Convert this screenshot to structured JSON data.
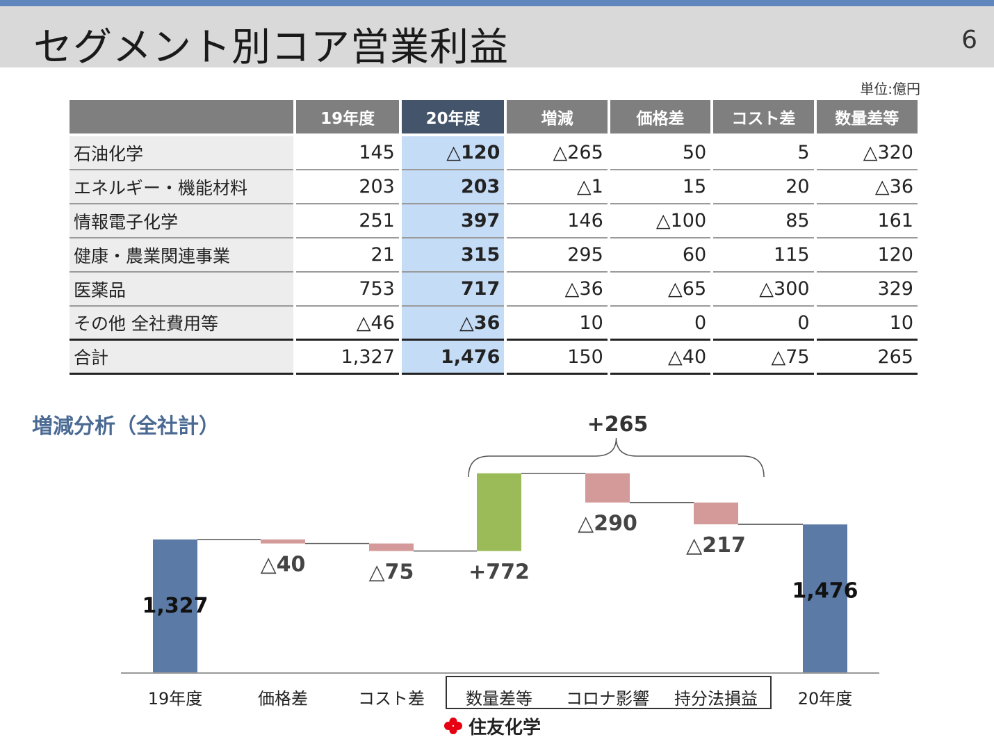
{
  "header": {
    "title": "セグメント別コア営業利益",
    "page_number": "6"
  },
  "table": {
    "unit": "単位:億円",
    "columns": [
      "",
      "19年度",
      "20年度",
      "増減",
      "価格差",
      "コスト差",
      "数量差等"
    ],
    "rows": [
      [
        "石油化学",
        "145",
        "△120",
        "△265",
        "50",
        "5",
        "△320"
      ],
      [
        "エネルギー・機能材料",
        "203",
        "203",
        "△1",
        "15",
        "20",
        "△36"
      ],
      [
        "情報電子化学",
        "251",
        "397",
        "146",
        "△100",
        "85",
        "161"
      ],
      [
        "健康・農業関連事業",
        "21",
        "315",
        "295",
        "60",
        "115",
        "120"
      ],
      [
        "医薬品",
        "753",
        "717",
        "△36",
        "△65",
        "△300",
        "329"
      ],
      [
        "その他 全社費用等",
        "△46",
        "△36",
        "10",
        "0",
        "0",
        "10"
      ],
      [
        "合計",
        "1,327",
        "1,476",
        "150",
        "△40",
        "△75",
        "265"
      ]
    ]
  },
  "analysis": {
    "title": "増減分析（全社計）",
    "group_label": "+265"
  },
  "chart_data": {
    "type": "bar",
    "subtype": "waterfall",
    "categories": [
      "19年度",
      "価格差",
      "コスト差",
      "数量差等",
      "コロナ影響",
      "持分法損益",
      "20年度"
    ],
    "values": [
      1327,
      -40,
      -75,
      772,
      -290,
      -217,
      1476
    ],
    "measures": [
      "absolute",
      "relative",
      "relative",
      "relative",
      "relative",
      "relative",
      "total"
    ],
    "data_labels": [
      "1,327",
      "△40",
      "△75",
      "+772",
      "△290",
      "△217",
      "1,476"
    ],
    "bracket": {
      "from_category": "数量差等",
      "to_category": "持分法損益",
      "label": "+265"
    },
    "boxed_categories": [
      "数量差等",
      "コロナ影響",
      "持分法損益"
    ],
    "ylim": [
      0,
      1640
    ],
    "colors": {
      "total": "#5b7ba6",
      "decrease": "#d49a9a",
      "increase": "#9bbb59",
      "connector": "#555555",
      "axis": "#999999"
    },
    "grid": false
  },
  "footer": {
    "company": "住友化学"
  },
  "colors": {
    "accent": "#5f86bd",
    "header_gray": "#7f7f7f",
    "header_highlight": "#44546a",
    "cell_highlight": "#c5dcf7"
  }
}
